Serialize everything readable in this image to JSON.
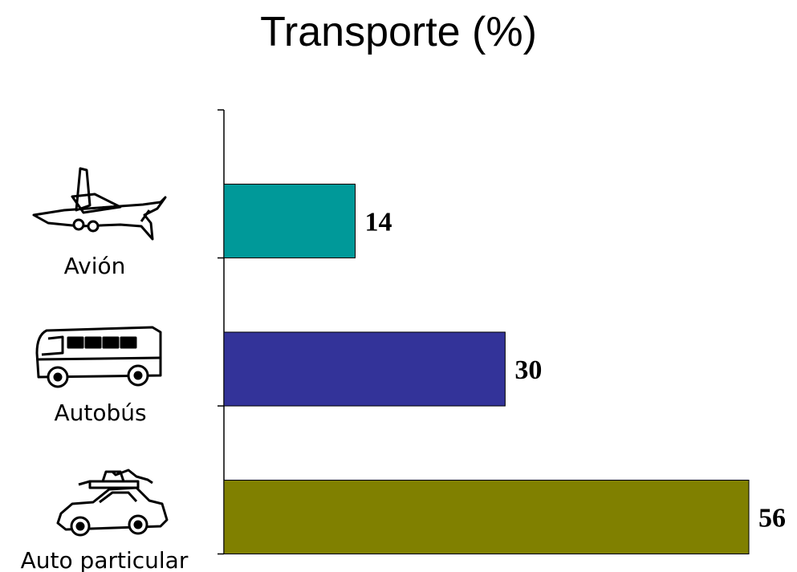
{
  "chart_data": {
    "type": "bar",
    "orientation": "horizontal",
    "title": "Transporte (%)",
    "categories": [
      "Avión",
      "Autobús",
      "Auto particular"
    ],
    "values": [
      14,
      30,
      56
    ],
    "data_labels": [
      "14",
      "30",
      "56"
    ],
    "colors": [
      "#009999",
      "#333399",
      "#808000"
    ],
    "icons": [
      "airplane-icon",
      "bus-icon",
      "car-icon"
    ],
    "xlim": [
      0,
      56
    ],
    "grid": false,
    "legend": "none"
  }
}
